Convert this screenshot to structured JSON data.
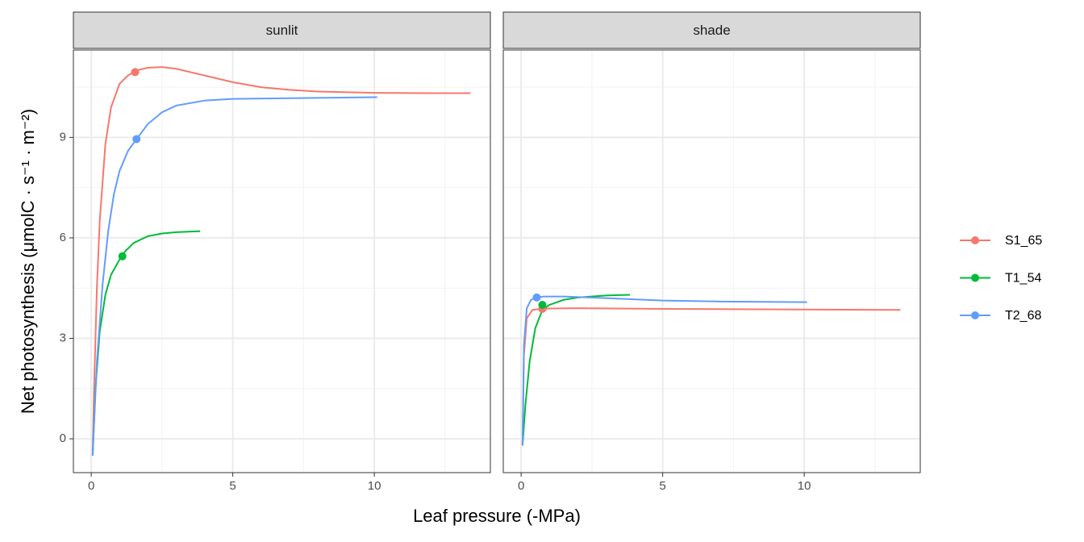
{
  "chart_data": [
    {
      "type": "line",
      "title": "sunlit",
      "xlabel": "Leaf pressure (-MPa)",
      "ylabel": "Net photosynthesis (μmolC · s⁻¹ · m⁻²)",
      "xlim": [
        -0.63,
        14.1
      ],
      "ylim": [
        -1.01,
        11.61
      ],
      "xticks": [
        0,
        5,
        10
      ],
      "yticks": [
        0,
        3,
        6,
        9
      ],
      "xminor": [
        2.5,
        7.5,
        12.5
      ],
      "yminor": [
        1.5,
        4.5,
        7.5,
        10.5
      ],
      "grid": true,
      "legend": "right",
      "series": [
        {
          "name": "S1_65",
          "color": "#f8766d",
          "x": [
            0.05,
            0.1,
            0.2,
            0.3,
            0.5,
            0.7,
            1.0,
            1.3,
            1.6,
            2.0,
            2.5,
            3,
            4,
            5,
            6,
            7,
            8,
            10,
            12,
            13.4
          ],
          "values": [
            -0.5,
            1.5,
            4.5,
            6.5,
            8.8,
            9.9,
            10.6,
            10.85,
            11.0,
            11.08,
            11.1,
            11.05,
            10.85,
            10.65,
            10.5,
            10.42,
            10.37,
            10.33,
            10.32,
            10.32
          ],
          "point_x": 1.55,
          "point_y": 10.95
        },
        {
          "name": "T1_54",
          "color": "#00ba38",
          "x": [
            0.05,
            0.15,
            0.3,
            0.5,
            0.7,
            1.0,
            1.2,
            1.5,
            2,
            2.5,
            3,
            3.85
          ],
          "values": [
            -0.5,
            1.5,
            3.2,
            4.3,
            4.9,
            5.35,
            5.6,
            5.85,
            6.05,
            6.13,
            6.17,
            6.2
          ],
          "point_x": 1.1,
          "point_y": 5.45
        },
        {
          "name": "T2_68",
          "color": "#619cff",
          "x": [
            0.05,
            0.2,
            0.4,
            0.6,
            0.8,
            1.0,
            1.3,
            1.6,
            2,
            2.5,
            3,
            4,
            5,
            7,
            10.1
          ],
          "values": [
            -0.5,
            2.3,
            4.6,
            6.2,
            7.3,
            8.0,
            8.6,
            8.95,
            9.4,
            9.75,
            9.95,
            10.1,
            10.15,
            10.17,
            10.2
          ],
          "point_x": 1.6,
          "point_y": 8.95
        }
      ]
    },
    {
      "type": "line",
      "title": "shade",
      "xlim": [
        -0.63,
        14.1
      ],
      "ylim": [
        -1.01,
        11.61
      ],
      "xticks": [
        0,
        5,
        10
      ],
      "yticks": [
        0,
        3,
        6,
        9
      ],
      "xminor": [
        2.5,
        7.5,
        12.5
      ],
      "yminor": [
        1.5,
        4.5,
        7.5,
        10.5
      ],
      "grid": true,
      "series": [
        {
          "color": "#f8766d",
          "x": [
            0.05,
            0.1,
            0.2,
            0.4,
            0.7,
            1,
            2,
            5,
            10,
            13.4
          ],
          "values": [
            -0.2,
            2.5,
            3.6,
            3.85,
            3.88,
            3.89,
            3.9,
            3.88,
            3.86,
            3.85
          ],
          "point_x": 0.75,
          "point_y": 3.88
        },
        {
          "color": "#00ba38",
          "x": [
            0.05,
            0.15,
            0.3,
            0.5,
            0.75,
            1,
            1.5,
            2,
            3,
            3.85
          ],
          "values": [
            -0.2,
            1.0,
            2.3,
            3.3,
            3.85,
            4.0,
            4.15,
            4.22,
            4.28,
            4.3
          ],
          "point_x": 0.75,
          "point_y": 4.0
        },
        {
          "color": "#619cff",
          "x": [
            0.05,
            0.1,
            0.2,
            0.35,
            0.55,
            0.8,
            1.5,
            3,
            5,
            7,
            10.1
          ],
          "values": [
            -0.2,
            2.8,
            3.9,
            4.15,
            4.22,
            4.25,
            4.25,
            4.2,
            4.13,
            4.1,
            4.08
          ],
          "point_x": 0.55,
          "point_y": 4.22
        }
      ]
    }
  ]
}
